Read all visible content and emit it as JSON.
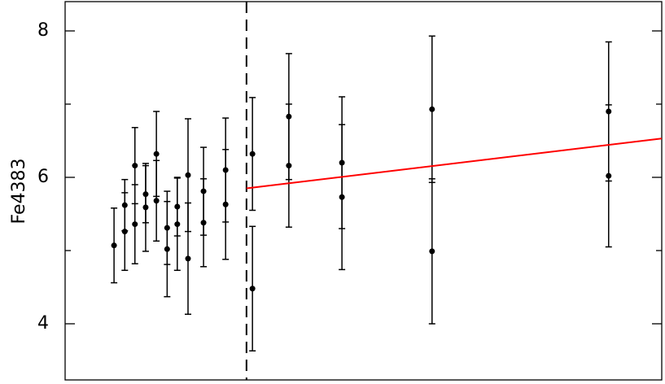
{
  "chart_data": {
    "type": "scatter",
    "y_label": "Fe4383",
    "xlim": [
      0,
      100
    ],
    "ylim": [
      3.233,
      8.4
    ],
    "yticks": [
      4,
      6,
      8
    ],
    "yminorticks": [
      5,
      7
    ],
    "vline": 30.4,
    "series": [
      {
        "color": "#000000",
        "x": [
          8.2,
          10.0,
          10.0,
          11.7,
          11.7,
          13.5,
          13.5,
          15.3,
          15.3,
          17.1,
          17.1,
          18.8,
          18.8,
          20.6,
          20.6,
          23.2,
          23.2,
          26.9,
          26.9,
          31.4,
          31.4,
          37.5,
          37.5,
          46.4,
          46.4,
          61.5,
          61.5,
          91.1,
          91.1
        ],
        "values": [
          5.07,
          5.62,
          5.26,
          6.16,
          5.36,
          5.77,
          5.59,
          6.32,
          5.68,
          5.31,
          5.02,
          5.6,
          5.36,
          6.03,
          4.89,
          5.81,
          5.38,
          6.1,
          5.63,
          6.32,
          4.48,
          6.83,
          6.16,
          6.2,
          5.73,
          6.93,
          4.99,
          6.9,
          6.02
        ],
        "errors": [
          0.51,
          0.35,
          0.53,
          0.52,
          0.54,
          0.39,
          0.6,
          0.58,
          0.55,
          0.5,
          0.65,
          0.4,
          0.63,
          0.77,
          0.76,
          0.6,
          0.6,
          0.71,
          0.75,
          0.77,
          0.85,
          0.86,
          0.84,
          0.9,
          0.99,
          1.0,
          0.99,
          0.95,
          0.97
        ]
      }
    ],
    "fit_line": {
      "color": "#ff0000",
      "x": [
        30.4,
        100
      ],
      "values": [
        5.85,
        6.53
      ]
    }
  }
}
